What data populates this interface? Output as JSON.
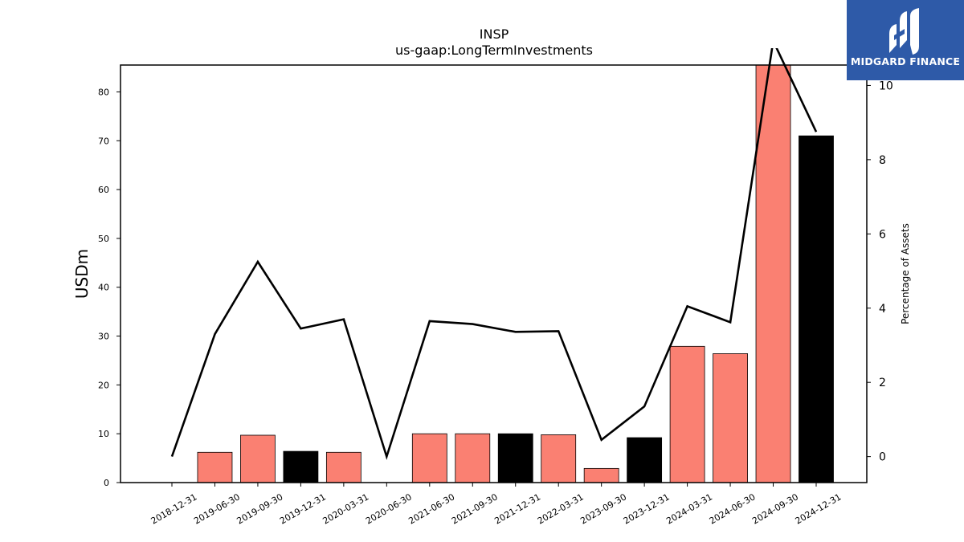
{
  "chart_data": {
    "type": "bar",
    "title": "INSP",
    "subtitle": "us-gaap:LongTermInvestments",
    "ylabel": "USDm",
    "y2label": "Percentage of Assets",
    "categories": [
      "2018-12-31",
      "2019-06-30",
      "2019-09-30",
      "2019-12-31",
      "2020-03-31",
      "2020-06-30",
      "2021-06-30",
      "2021-09-30",
      "2021-12-31",
      "2022-03-31",
      "2023-09-30",
      "2023-12-31",
      "2024-03-31",
      "2024-06-30",
      "2024-09-30",
      "2024-12-31"
    ],
    "series": [
      {
        "values": [
          0,
          6.2,
          9.7,
          6.4,
          6.2,
          0,
          10.0,
          10.0,
          10.0,
          9.8,
          2.9,
          9.2,
          27.9,
          26.4,
          85.5,
          71.0
        ],
        "colors": [
          "#fa8072",
          "#fa8072",
          "#fa8072",
          "#000000",
          "#fa8072",
          "#fa8072",
          "#fa8072",
          "#fa8072",
          "#000000",
          "#fa8072",
          "#fa8072",
          "#000000",
          "#fa8072",
          "#fa8072",
          "#fa8072",
          "#000000"
        ]
      },
      {
        "type": "line",
        "axis": "right",
        "values": [
          0,
          3.3,
          5.25,
          3.45,
          3.7,
          0,
          3.65,
          3.57,
          3.36,
          3.38,
          0.45,
          1.35,
          4.05,
          3.62,
          11.2,
          8.75
        ]
      }
    ],
    "ylim": [
      0,
      85.5
    ],
    "y2lim": [
      -0.7,
      10.55
    ],
    "yticks": [
      0,
      10,
      20,
      30,
      40,
      50,
      60,
      70,
      80
    ],
    "y2ticks": [
      0,
      2,
      4,
      6,
      8,
      10
    ],
    "grid": false,
    "legend": "none"
  },
  "logo": {
    "text": "MIDGARD FINANCE"
  }
}
